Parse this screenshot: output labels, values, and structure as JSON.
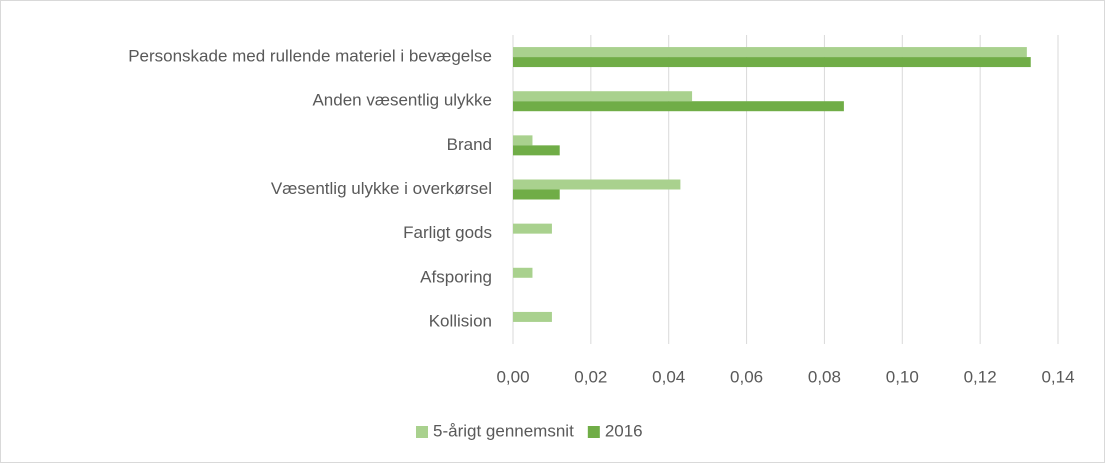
{
  "chart_data": {
    "type": "hbar",
    "categories": [
      "Personskade med rullende materiel i bevægelse",
      "Anden væsentlig ulykke",
      "Brand",
      "Væsentlig ulykke i overkørsel",
      "Farligt gods",
      "Afsporing",
      "Kollision"
    ],
    "series": [
      {
        "name": "5-årigt gennemsnit",
        "color": "#a9d18e",
        "values": [
          0.132,
          0.046,
          0.005,
          0.043,
          0.01,
          0.005,
          0.01
        ]
      },
      {
        "name": "2016",
        "color": "#70ad47",
        "values": [
          0.133,
          0.085,
          0.012,
          0.012,
          0,
          0,
          0
        ]
      }
    ],
    "xlim": [
      0,
      0.14
    ],
    "xticks": [
      {
        "value": 0,
        "label": "0,00"
      },
      {
        "value": 0.02,
        "label": "0,02"
      },
      {
        "value": 0.04,
        "label": "0,04"
      },
      {
        "value": 0.06,
        "label": "0,06"
      },
      {
        "value": 0.08,
        "label": "0,08"
      },
      {
        "value": 0.1,
        "label": "0,10"
      },
      {
        "value": 0.12,
        "label": "0,12"
      },
      {
        "value": 0.14,
        "label": "0,14"
      }
    ],
    "grid": true,
    "legend": "bottom"
  }
}
